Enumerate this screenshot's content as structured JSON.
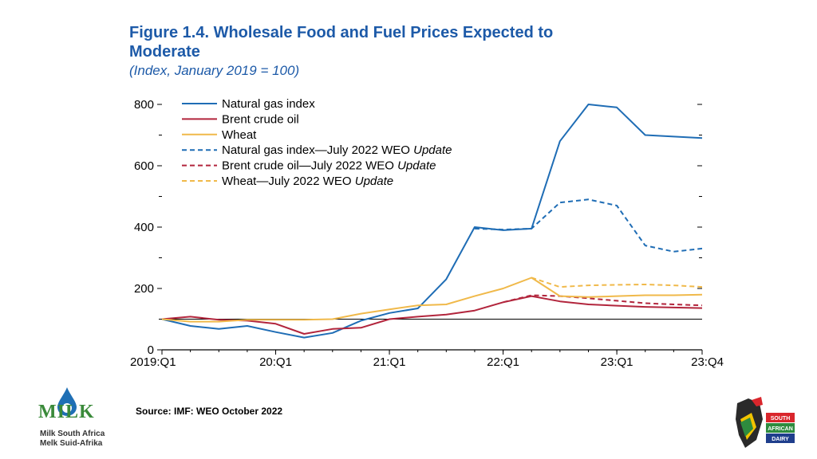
{
  "figure": {
    "title_line1": "Figure 1.4.  Wholesale Food and Fuel Prices Expected to",
    "title_line2": "Moderate",
    "subtitle": "(Index, January 2019 = 100)"
  },
  "source": "Source: IMF: WEO October 2022",
  "milk_logo": {
    "word": "MILK",
    "line1": "Milk South Africa",
    "line2": "Melk Suid-Afrika",
    "color": "#3a8a3a"
  },
  "dairy_logo": {
    "line1": "SOUTH",
    "line2": "AFRICAN",
    "line3": "DAIRY",
    "red": "#d9262c",
    "green": "#2e8b3e",
    "blue": "#1f3e8c"
  },
  "chart_data": {
    "type": "line",
    "title": "Wholesale Food and Fuel Prices Expected to Moderate",
    "ylabel": "Index, January 2019 = 100",
    "xlabel": "",
    "ylim": [
      0,
      800
    ],
    "y_ticks": [
      0,
      200,
      400,
      600,
      800
    ],
    "x_range": [
      0,
      19
    ],
    "x_ticks": [
      {
        "x": 0,
        "label": "2019:Q1"
      },
      {
        "x": 4,
        "label": "20:Q1"
      },
      {
        "x": 8,
        "label": "21:Q1"
      },
      {
        "x": 12,
        "label": "22:Q1"
      },
      {
        "x": 16,
        "label": "23:Q1"
      },
      {
        "x": 19,
        "label": "23:Q4"
      }
    ],
    "baseline": 100,
    "legend_position": "top-left",
    "series": [
      {
        "name": "Natural gas index",
        "color": "#1f6db5",
        "dashed": false,
        "x": [
          0,
          1,
          2,
          3,
          4,
          5,
          6,
          7,
          8,
          9,
          10,
          11,
          12,
          13,
          14,
          15,
          16,
          17,
          18,
          19
        ],
        "y": [
          100,
          78,
          68,
          78,
          58,
          40,
          55,
          95,
          120,
          135,
          230,
          400,
          390,
          395,
          680,
          800,
          790,
          700,
          695,
          690
        ]
      },
      {
        "name": "Brent crude oil",
        "color": "#b2253c",
        "dashed": false,
        "x": [
          0,
          1,
          2,
          3,
          4,
          5,
          6,
          7,
          8,
          9,
          10,
          11,
          12,
          13,
          14,
          15,
          16,
          17,
          18,
          19
        ],
        "y": [
          100,
          108,
          98,
          95,
          85,
          52,
          68,
          72,
          100,
          108,
          115,
          128,
          155,
          175,
          158,
          148,
          144,
          140,
          138,
          136
        ]
      },
      {
        "name": "Wheat",
        "color": "#f0b94a",
        "dashed": false,
        "x": [
          0,
          1,
          2,
          3,
          4,
          5,
          6,
          7,
          8,
          9,
          10,
          11,
          12,
          13,
          14,
          15,
          16,
          17,
          18,
          19
        ],
        "y": [
          100,
          92,
          92,
          98,
          98,
          98,
          100,
          118,
          132,
          145,
          148,
          175,
          200,
          235,
          175,
          172,
          175,
          178,
          178,
          180
        ]
      },
      {
        "name": "Natural gas index—July 2022 WEO Update",
        "color": "#1f6db5",
        "dashed": true,
        "x": [
          11,
          12,
          13,
          14,
          15,
          16,
          17,
          18,
          19
        ],
        "y": [
          395,
          392,
          395,
          480,
          490,
          470,
          340,
          320,
          330
        ]
      },
      {
        "name": "Brent crude oil—July 2022 WEO Update",
        "color": "#b2253c",
        "dashed": true,
        "x": [
          12,
          13,
          14,
          15,
          16,
          17,
          18,
          19
        ],
        "y": [
          155,
          178,
          175,
          168,
          160,
          152,
          148,
          145
        ]
      },
      {
        "name": "Wheat—July 2022 WEO Update",
        "color": "#f0b94a",
        "dashed": true,
        "x": [
          13,
          14,
          15,
          16,
          17,
          18,
          19
        ],
        "y": [
          235,
          205,
          210,
          212,
          213,
          210,
          205
        ]
      }
    ]
  }
}
